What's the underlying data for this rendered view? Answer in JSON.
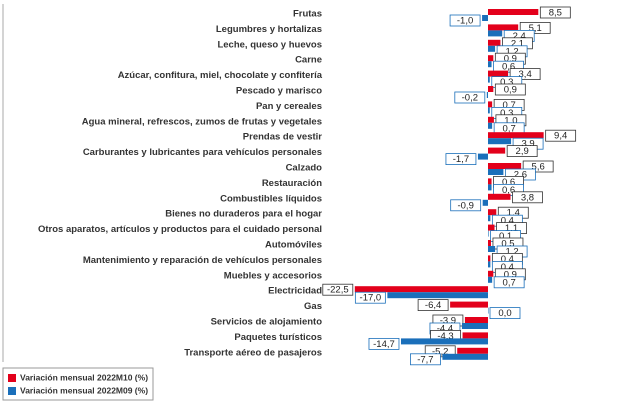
{
  "chart_data": {
    "type": "hbar",
    "categories": [
      "Frutas",
      "Legumbres y hortalizas",
      "Leche, queso y huevos",
      "Carne",
      "Azúcar, confitura, miel, chocolate y confitería",
      "Pescado y marisco",
      "Pan y cereales",
      "Agua mineral, refrescos, zumos de frutas y vegetales",
      "Prendas de vestir",
      "Carburantes y lubricantes para vehículos personales",
      "Calzado",
      "Restauración",
      "Combustibles líquidos",
      "Bienes no duraderos para el hogar",
      "Otros aparatos, artículos y productos para el cuidado personal",
      "Automóviles",
      "Mantenimiento y reparación de vehículos personales",
      "Muebles y accesorios",
      "Electricidad",
      "Gas",
      "Servicios de alojamiento",
      "Paquetes turísticos",
      "Transporte aéreo de pasajeros"
    ],
    "series": [
      {
        "name": "Variación mensual 2022M10 (%)",
        "color": "#e3001b",
        "values": [
          8.5,
          5.1,
          2.1,
          0.9,
          3.4,
          0.9,
          0.7,
          1.0,
          9.4,
          2.9,
          5.6,
          0.6,
          3.8,
          1.4,
          1.1,
          0.5,
          0.4,
          0.9,
          -22.5,
          -6.4,
          -3.9,
          -4.3,
          -5.2
        ],
        "value_labels": [
          "8,5",
          "5,1",
          "2,1",
          "0,9",
          "3,4",
          "0,9",
          "0,7",
          "1,0",
          "9,4",
          "2,9",
          "5,6",
          "0,6",
          "3,8",
          "1,4",
          "1,1",
          "0,5",
          "0,4",
          "0,9",
          "-22,5",
          "-6,4",
          "-3,9",
          "-4,3",
          "-5,2"
        ]
      },
      {
        "name": "Variación mensual 2022M09 (%)",
        "color": "#1a6fba",
        "values": [
          -1.0,
          2.4,
          1.2,
          0.6,
          0.3,
          -0.2,
          0.3,
          0.7,
          3.9,
          -1.7,
          2.6,
          0.6,
          -0.9,
          0.4,
          0.1,
          1.2,
          0.4,
          0.7,
          -17.0,
          0.0,
          -4.4,
          -14.7,
          -7.7
        ],
        "value_labels": [
          "-1,0",
          "2,4",
          "1,2",
          "0,6",
          "0,3",
          "-0,2",
          "0,3",
          "0,7",
          "3,9",
          "-1,7",
          "2,6",
          "0,6",
          "-0,9",
          "0,4",
          "0,1",
          "1,2",
          "0,4",
          "0,7",
          "-17,0",
          "0,0",
          "-4,4",
          "-14,7",
          "-7,7"
        ]
      }
    ],
    "xlim": [
      -25,
      25
    ]
  }
}
